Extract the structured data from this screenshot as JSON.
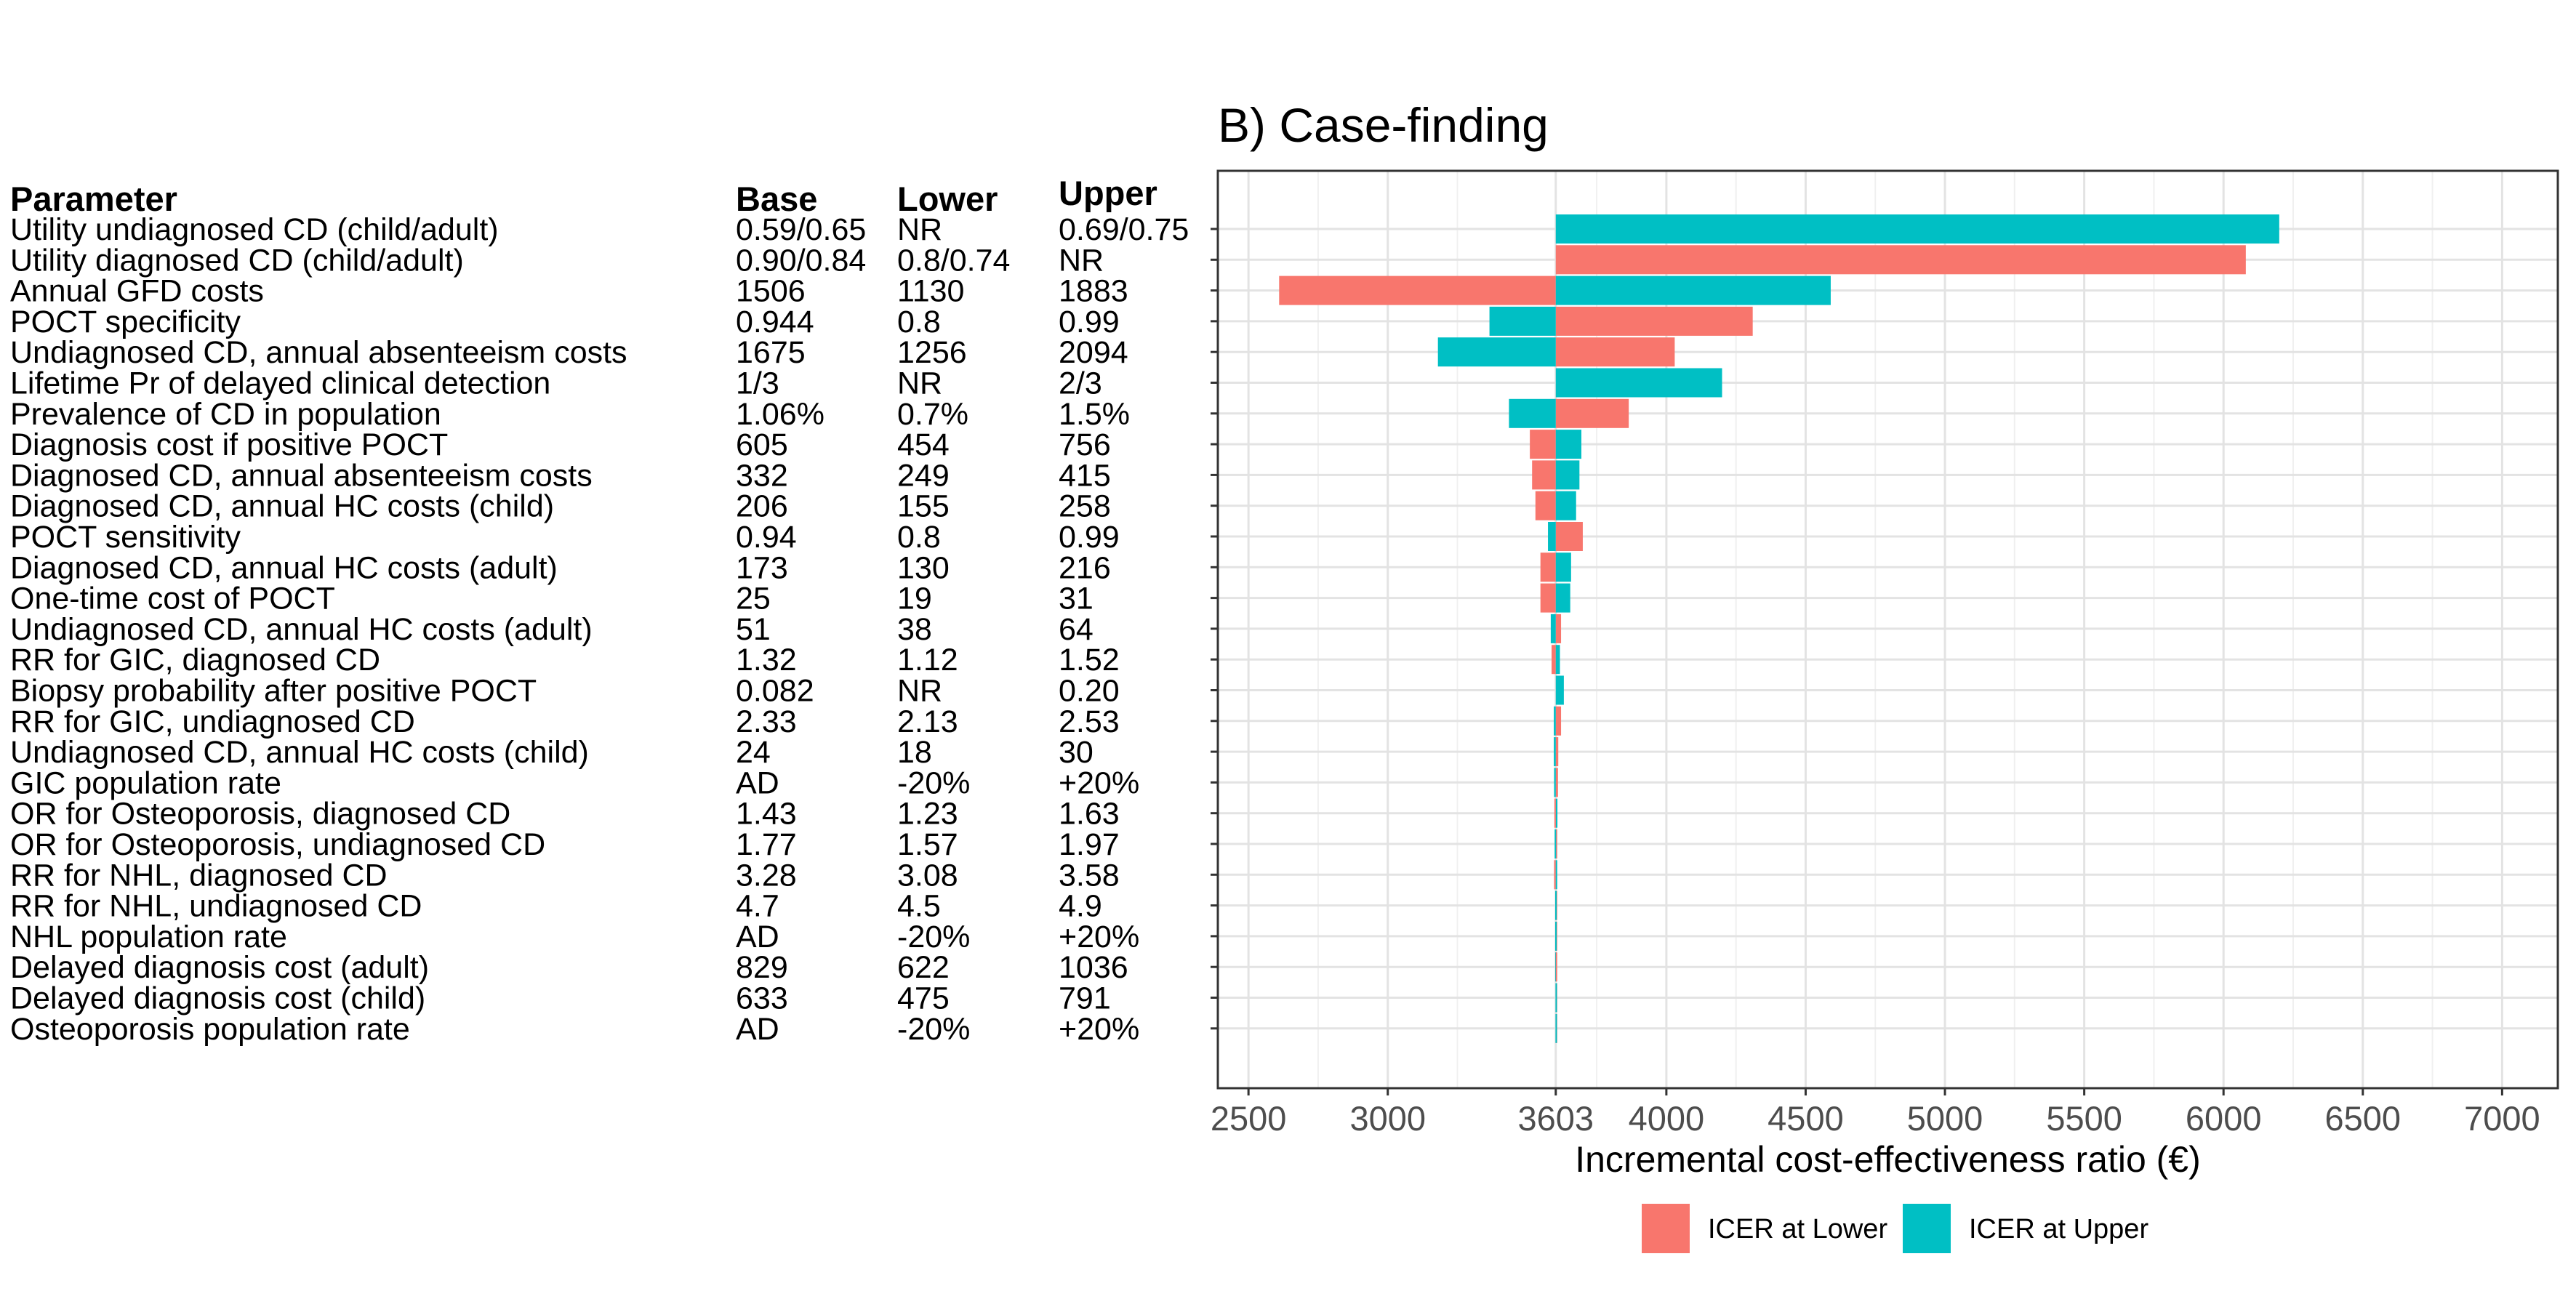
{
  "chart_data": {
    "type": "bar",
    "subtype": "tornado",
    "title": "B) Case-finding",
    "xlabel": "Incremental cost-effectiveness ratio (€)",
    "ylabel": "",
    "base_value": 3603,
    "xlim": [
      2390,
      7200
    ],
    "x_ticks": [
      2500,
      3000,
      3603,
      4000,
      4500,
      5000,
      5500,
      6000,
      6500,
      7000
    ],
    "grid": true,
    "legend_position": "bottom",
    "table_headers": [
      "Parameter",
      "Base",
      "Lower",
      "Upper"
    ],
    "series": [
      {
        "name": "ICER at Lower",
        "color": "#F8766D"
      },
      {
        "name": "ICER at Upper",
        "color": "#00BFC4"
      }
    ],
    "rows": [
      {
        "parameter": "Utility undiagnosed CD (child/adult)",
        "base": "0.59/0.65",
        "lower": "NR",
        "upper": "0.69/0.75",
        "icer_lower": null,
        "icer_upper": 6200
      },
      {
        "parameter": "Utility diagnosed CD (child/adult)",
        "base": "0.90/0.84",
        "lower": "0.8/0.74",
        "upper": "NR",
        "icer_lower": 6080,
        "icer_upper": null
      },
      {
        "parameter": "Annual GFD costs",
        "base": "1506",
        "lower": "1130",
        "upper": "1883",
        "icer_lower": 2610,
        "icer_upper": 4590
      },
      {
        "parameter": "POCT specificity",
        "base": "0.944",
        "lower": "0.8",
        "upper": "0.99",
        "icer_lower": 4310,
        "icer_upper": 3365
      },
      {
        "parameter": "Undiagnosed CD, annual absenteeism costs",
        "base": "1675",
        "lower": "1256",
        "upper": "2094",
        "icer_lower": 4030,
        "icer_upper": 3180
      },
      {
        "parameter": "Lifetime Pr of delayed clinical detection",
        "base": "1/3",
        "lower": "NR",
        "upper": "2/3",
        "icer_lower": null,
        "icer_upper": 4200
      },
      {
        "parameter": "Prevalence of CD in population",
        "base": "1.06%",
        "lower": "0.7%",
        "upper": "1.5%",
        "icer_lower": 3865,
        "icer_upper": 3435
      },
      {
        "parameter": "Diagnosis cost if positive POCT",
        "base": "605",
        "lower": "454",
        "upper": "756",
        "icer_lower": 3510,
        "icer_upper": 3695
      },
      {
        "parameter": "Diagnosed CD, annual absenteeism costs",
        "base": "332",
        "lower": "249",
        "upper": "415",
        "icer_lower": 3518,
        "icer_upper": 3688
      },
      {
        "parameter": "Diagnosed CD, annual HC costs (child)",
        "base": "206",
        "lower": "155",
        "upper": "258",
        "icer_lower": 3530,
        "icer_upper": 3676
      },
      {
        "parameter": "POCT sensitivity",
        "base": "0.94",
        "lower": "0.8",
        "upper": "0.99",
        "icer_lower": 3700,
        "icer_upper": 3575
      },
      {
        "parameter": "Diagnosed CD, annual HC costs (adult)",
        "base": "173",
        "lower": "130",
        "upper": "216",
        "icer_lower": 3548,
        "icer_upper": 3658
      },
      {
        "parameter": "One-time cost of POCT",
        "base": "25",
        "lower": "19",
        "upper": "31",
        "icer_lower": 3548,
        "icer_upper": 3655
      },
      {
        "parameter": "Undiagnosed CD, annual HC costs (adult)",
        "base": "51",
        "lower": "38",
        "upper": "64",
        "icer_lower": 3622,
        "icer_upper": 3585
      },
      {
        "parameter": "RR for GIC, diagnosed CD",
        "base": "1.32",
        "lower": "1.12",
        "upper": "1.52",
        "icer_lower": 3588,
        "icer_upper": 3618
      },
      {
        "parameter": "Biopsy probability after positive POCT",
        "base": "0.082",
        "lower": "NR",
        "upper": "0.20",
        "icer_lower": null,
        "icer_upper": 3632
      },
      {
        "parameter": "RR for GIC, undiagnosed CD",
        "base": "2.33",
        "lower": "2.13",
        "upper": "2.53",
        "icer_lower": 3622,
        "icer_upper": 3596
      },
      {
        "parameter": "Undiagnosed CD, annual HC costs (child)",
        "base": "24",
        "lower": "18",
        "upper": "30",
        "icer_lower": 3612,
        "icer_upper": 3596
      },
      {
        "parameter": "GIC population rate",
        "base": "AD",
        "lower": "-20%",
        "upper": "+20%",
        "icer_lower": 3611,
        "icer_upper": 3597
      },
      {
        "parameter": "OR for Osteoporosis, diagnosed CD",
        "base": "1.43",
        "lower": "1.23",
        "upper": "1.63",
        "icer_lower": 3598,
        "icer_upper": 3609
      },
      {
        "parameter": "OR for  Osteoporosis, undiagnosed CD",
        "base": "1.77",
        "lower": "1.57",
        "upper": "1.97",
        "icer_lower": 3608,
        "icer_upper": 3599
      },
      {
        "parameter": "RR for NHL, diagnosed CD",
        "base": "3.28",
        "lower": "3.08",
        "upper": "3.58",
        "icer_lower": 3597,
        "icer_upper": 3606
      },
      {
        "parameter": "RR for NHL, undiagnosed CD",
        "base": "4.7",
        "lower": "4.5",
        "upper": "4.9",
        "icer_lower": 3606,
        "icer_upper": 3601
      },
      {
        "parameter": "NHL population rate",
        "base": "AD",
        "lower": "-20%",
        "upper": "+20%",
        "icer_lower": 3605,
        "icer_upper": 3601
      },
      {
        "parameter": "Delayed diagnosis cost (adult)",
        "base": "829",
        "lower": "622",
        "upper": "1036",
        "icer_lower": 3604,
        "icer_upper": 3601
      },
      {
        "parameter": "Delayed diagnosis cost (child)",
        "base": "633",
        "lower": "475",
        "upper": "791",
        "icer_lower": 3604,
        "icer_upper": 3602
      },
      {
        "parameter": "Osteoporosis population rate",
        "base": "AD",
        "lower": "-20%",
        "upper": "+20%",
        "icer_lower": 3604,
        "icer_upper": 3602
      }
    ]
  }
}
